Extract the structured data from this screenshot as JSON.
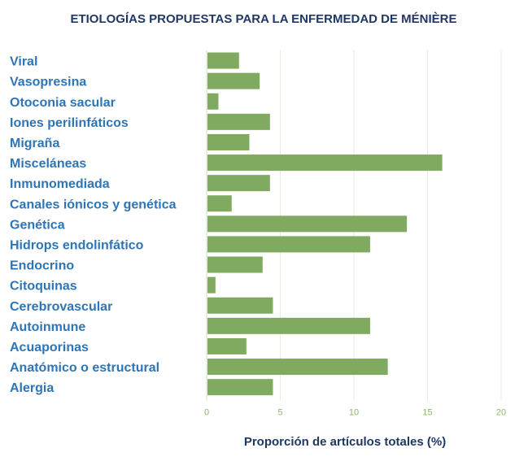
{
  "colors": {
    "title": "#1f3864",
    "category_label": "#2e75b6",
    "bar": "#7faa5f",
    "tick_label": "#8cb56a",
    "gridline": "#e6eede",
    "axis_line": "#d0ddc3",
    "axis_title": "#1f3864"
  },
  "chart_data": {
    "type": "bar",
    "orientation": "horizontal",
    "title": "ETIOLOGÍAS PROPUESTAS PARA LA ENFERMEDAD DE MÉNIÈRE",
    "xlabel": "Proporción de artículos totales (%)",
    "ylabel": "",
    "xlim": [
      0,
      20
    ],
    "xticks": [
      0,
      5,
      10,
      15,
      20
    ],
    "grid": true,
    "legend": "none",
    "categories": [
      "Viral",
      "Vasopresina",
      "Otoconia sacular",
      "Iones perilinfáticos",
      "Migraña",
      "Misceláneas",
      "Inmunomediada",
      "Canales iónicos y genética",
      "Genética",
      "Hidrops endolinfático",
      "Endocrino",
      "Citoquinas",
      "Cerebrovascular",
      "Autoinmune",
      "Acuaporinas",
      "Anatómico o estructural",
      "Alergia"
    ],
    "values": [
      2.2,
      3.6,
      0.8,
      4.3,
      2.9,
      16.0,
      4.3,
      1.7,
      13.6,
      11.1,
      3.8,
      0.6,
      4.5,
      11.1,
      2.7,
      12.3,
      4.5
    ]
  }
}
